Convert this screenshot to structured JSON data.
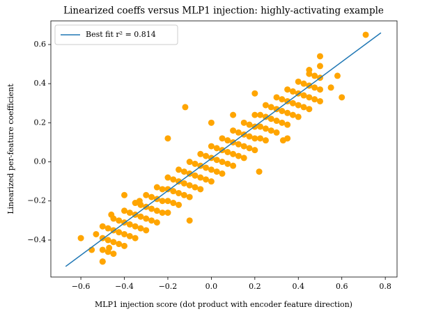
{
  "chart_data": {
    "type": "scatter",
    "title": "Linearized coeffs versus MLP1 injection: highly-activating example",
    "xlabel": "MLP1 injection score (dot product with encoder feature direction)",
    "ylabel": "Linearized per-feature coefficient",
    "xlim": [
      -0.738,
      0.854
    ],
    "ylim": [
      -0.589,
      0.721
    ],
    "xticks": [
      {
        "value": -0.6,
        "label": "−0.6"
      },
      {
        "value": -0.4,
        "label": "−0.4"
      },
      {
        "value": -0.2,
        "label": "−0.2"
      },
      {
        "value": 0,
        "label": "0.0"
      },
      0.2,
      0.4,
      0.6,
      0.8
    ],
    "yticks": [
      {
        "value": -0.4,
        "label": "−0.4"
      },
      {
        "value": -0.2,
        "label": "−0.2"
      },
      {
        "value": 0,
        "label": "0.0"
      },
      0.2,
      0.4,
      0.6
    ],
    "legend_position": "upper left",
    "series": [
      {
        "type": "scatter",
        "color": "#ffa500",
        "x": [
          -0.5,
          -0.5,
          -0.5,
          -0.5,
          -0.45,
          -0.45,
          -0.45,
          -0.45,
          -0.4,
          -0.4,
          -0.4,
          -0.4,
          -0.35,
          -0.35,
          -0.35,
          -0.35,
          -0.3,
          -0.3,
          -0.3,
          -0.3,
          -0.25,
          -0.25,
          -0.25,
          -0.25,
          -0.2,
          -0.2,
          -0.2,
          -0.2,
          -0.15,
          -0.15,
          -0.15,
          -0.15,
          -0.1,
          -0.1,
          -0.1,
          -0.1,
          -0.05,
          -0.05,
          -0.05,
          -0.05,
          0,
          0,
          0,
          0,
          0.05,
          0.05,
          0.05,
          0.05,
          0.1,
          0.1,
          0.1,
          0.1,
          0.15,
          0.15,
          0.15,
          0.15,
          0.2,
          0.2,
          0.2,
          0.2,
          0.25,
          0.25,
          0.25,
          0.25,
          0.3,
          0.3,
          0.3,
          0.3,
          0.35,
          0.35,
          0.35,
          0.35,
          0.4,
          0.4,
          0.4,
          0.4,
          0.45,
          0.45,
          0.45,
          0.45,
          0.5,
          0.5,
          0.5,
          0.5,
          -0.475,
          -0.475,
          -0.475,
          -0.425,
          -0.425,
          -0.425,
          -0.375,
          -0.375,
          -0.375,
          -0.325,
          -0.325,
          -0.325,
          -0.275,
          -0.275,
          -0.275,
          -0.225,
          -0.225,
          -0.225,
          -0.175,
          -0.175,
          -0.175,
          -0.125,
          -0.125,
          -0.125,
          -0.075,
          -0.075,
          -0.075,
          -0.025,
          -0.025,
          -0.025,
          0.025,
          0.025,
          0.025,
          0.075,
          0.075,
          0.075,
          0.125,
          0.125,
          0.125,
          0.175,
          0.175,
          0.175,
          0.225,
          0.225,
          0.225,
          0.275,
          0.275,
          0.275,
          0.325,
          0.325,
          0.325,
          0.375,
          0.375,
          0.375,
          0.425,
          0.425,
          0.425,
          0.475,
          0.475,
          0.475,
          -0.6,
          -0.55,
          -0.53,
          -0.5,
          -0.46,
          -0.47,
          -0.33,
          -0.12,
          -0.2,
          0.22,
          0.33,
          0.35,
          0.5,
          0.55,
          0.6,
          0.58,
          0.71,
          0.45,
          -0.4,
          0.1,
          0,
          -0.1,
          0.2
        ],
        "y": [
          -0.51,
          -0.45,
          -0.39,
          -0.33,
          -0.47,
          -0.41,
          -0.35,
          -0.29,
          -0.43,
          -0.37,
          -0.31,
          -0.25,
          -0.39,
          -0.33,
          -0.27,
          -0.21,
          -0.35,
          -0.29,
          -0.23,
          -0.17,
          -0.31,
          -0.25,
          -0.19,
          -0.13,
          -0.26,
          -0.2,
          -0.14,
          -0.08,
          -0.22,
          -0.16,
          -0.1,
          -0.04,
          -0.18,
          -0.12,
          -0.06,
          0,
          -0.14,
          -0.08,
          -0.02,
          0.04,
          -0.1,
          -0.04,
          0.02,
          0.08,
          -0.06,
          0,
          0.06,
          0.12,
          -0.02,
          0.04,
          0.1,
          0.16,
          0.02,
          0.08,
          0.14,
          0.2,
          0.06,
          0.12,
          0.18,
          0.24,
          0.11,
          0.17,
          0.23,
          0.29,
          0.15,
          0.21,
          0.27,
          0.33,
          0.19,
          0.25,
          0.31,
          0.37,
          0.23,
          0.29,
          0.35,
          0.41,
          0.27,
          0.33,
          0.39,
          0.45,
          0.31,
          0.37,
          0.43,
          0.49,
          -0.46,
          -0.4,
          -0.34,
          -0.42,
          -0.36,
          -0.3,
          -0.38,
          -0.32,
          -0.26,
          -0.34,
          -0.28,
          -0.22,
          -0.3,
          -0.24,
          -0.18,
          -0.26,
          -0.2,
          -0.14,
          -0.21,
          -0.15,
          -0.09,
          -0.17,
          -0.11,
          -0.05,
          -0.13,
          -0.07,
          -0.01,
          -0.09,
          -0.03,
          0.03,
          -0.05,
          0.01,
          0.07,
          -0.01,
          0.05,
          0.11,
          0.03,
          0.09,
          0.15,
          0.07,
          0.13,
          0.19,
          0.12,
          0.18,
          0.24,
          0.16,
          0.22,
          0.28,
          0.2,
          0.26,
          0.32,
          0.24,
          0.3,
          0.36,
          0.28,
          0.34,
          0.4,
          0.32,
          0.38,
          0.44,
          -0.39,
          -0.45,
          -0.37,
          -0.51,
          -0.27,
          -0.44,
          -0.2,
          0.28,
          0.12,
          -0.05,
          0.11,
          0.12,
          0.54,
          0.38,
          0.33,
          0.44,
          0.65,
          0.47,
          -0.17,
          0.24,
          0.2,
          -0.3,
          0.35
        ]
      },
      {
        "type": "line",
        "name": "Best fit r² = 0.814",
        "color": "#1f77b4",
        "x": [
          -0.67,
          0.78
        ],
        "y": [
          -0.535,
          0.66
        ]
      }
    ]
  }
}
